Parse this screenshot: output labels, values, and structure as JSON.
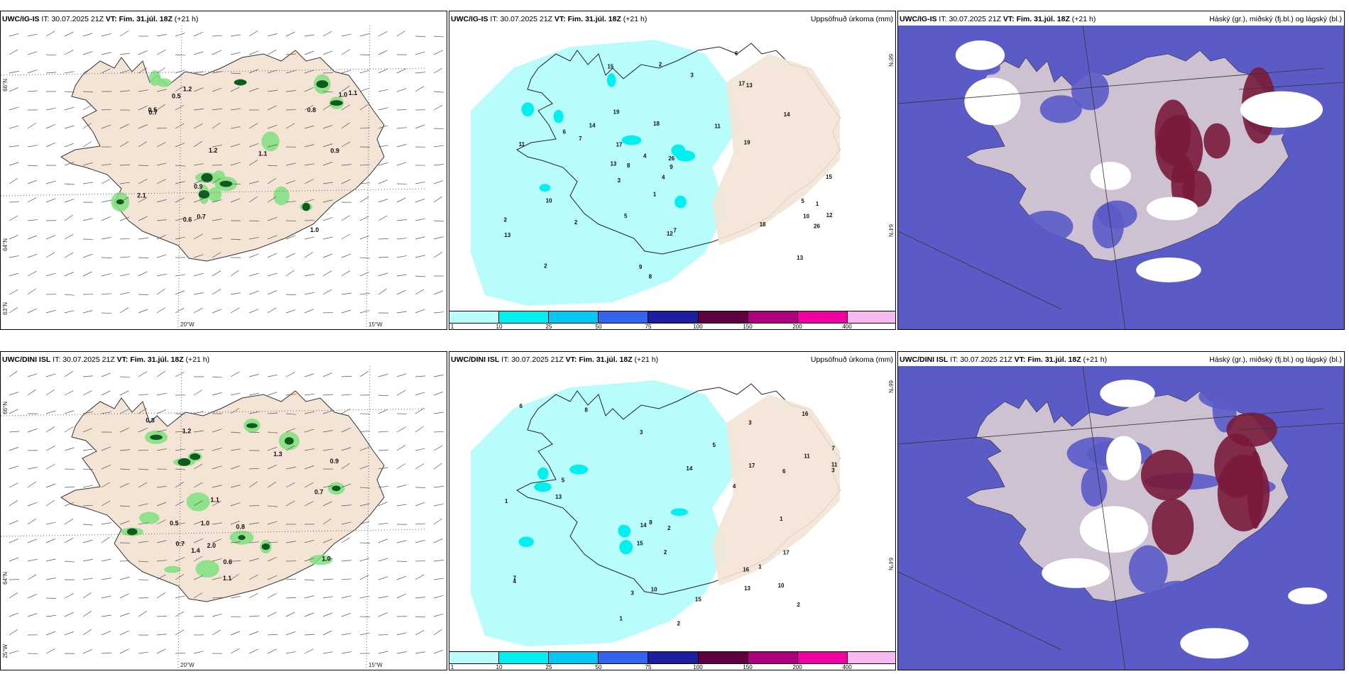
{
  "rows": [
    {
      "model": "UWC/IG-IS",
      "it_label": "IT:",
      "it": "30.07.2025 21Z",
      "vt_label": "VT:",
      "vt": "Fim. 31.júl. 18Z",
      "lead": "(+21 h)",
      "precip_values": [
        "2",
        "8",
        "13",
        "17",
        "9",
        "12",
        "15",
        "14",
        "11",
        "19",
        "13",
        "18",
        "10",
        "26",
        "7",
        "6",
        "4",
        "3",
        "5",
        "2",
        "1"
      ],
      "wind_values": [
        "0.5",
        "0.9",
        "1.2",
        "1.0",
        "2.1",
        "0.7",
        "1.1",
        "0.6",
        "0.9",
        "1.0",
        "0.8",
        "1.2",
        "0.5",
        "1.1",
        "0.7"
      ]
    },
    {
      "model": "UWC/DINI ISL",
      "it_label": "IT:",
      "it": "30.07.2025 21Z",
      "vt_label": "VT:",
      "vt": "Fim. 31.júl. 18Z",
      "lead": "(+21 h)",
      "precip_values": [
        "2",
        "1",
        "5",
        "3",
        "7",
        "15",
        "11",
        "13",
        "17",
        "14",
        "16",
        "10",
        "8",
        "6",
        "4",
        "3",
        "2",
        "1"
      ],
      "wind_values": [
        "1.0",
        "1.2",
        "0.5",
        "1.1",
        "0.8",
        "0.9",
        "1.4",
        "2.0",
        "1.3",
        "0.6",
        "0.7",
        "1.0",
        "0.8",
        "1.1",
        "0.7"
      ]
    }
  ],
  "precip_title": "Uppsöfnuð úrkoma (mm)",
  "cloud_title": "Háský (gr.), miðský (fj.bl.) og lágský (bl.)",
  "colorbar": {
    "ticks": [
      "1",
      "10",
      "25",
      "50",
      "75",
      "100",
      "150",
      "200",
      "400"
    ],
    "colors": [
      "#b8fcfc",
      "#00f0f0",
      "#00c8f0",
      "#3264f0",
      "#1e1ea0",
      "#600040",
      "#b00080",
      "#f000a0",
      "#f8b8f0"
    ]
  },
  "axis_labels": {
    "lat66": "66°N",
    "lat64": "64°N",
    "lat63": "63°N",
    "lon25": "25°W",
    "lon20": "20°W",
    "lon15": "15°W",
    "lat66b": "66°N",
    "lat64b": "64°N"
  },
  "colors": {
    "land": "#f3e4d6",
    "precip_light": "#b8fcfc",
    "precip_mid": "#00f0f0",
    "cloud_low": "#5b5bc8",
    "cloud_high": "#7a1a3a",
    "cloud_mid": "#2b4bd8",
    "wind_green": "#7fe07f",
    "wind_dark": "#105a20"
  }
}
